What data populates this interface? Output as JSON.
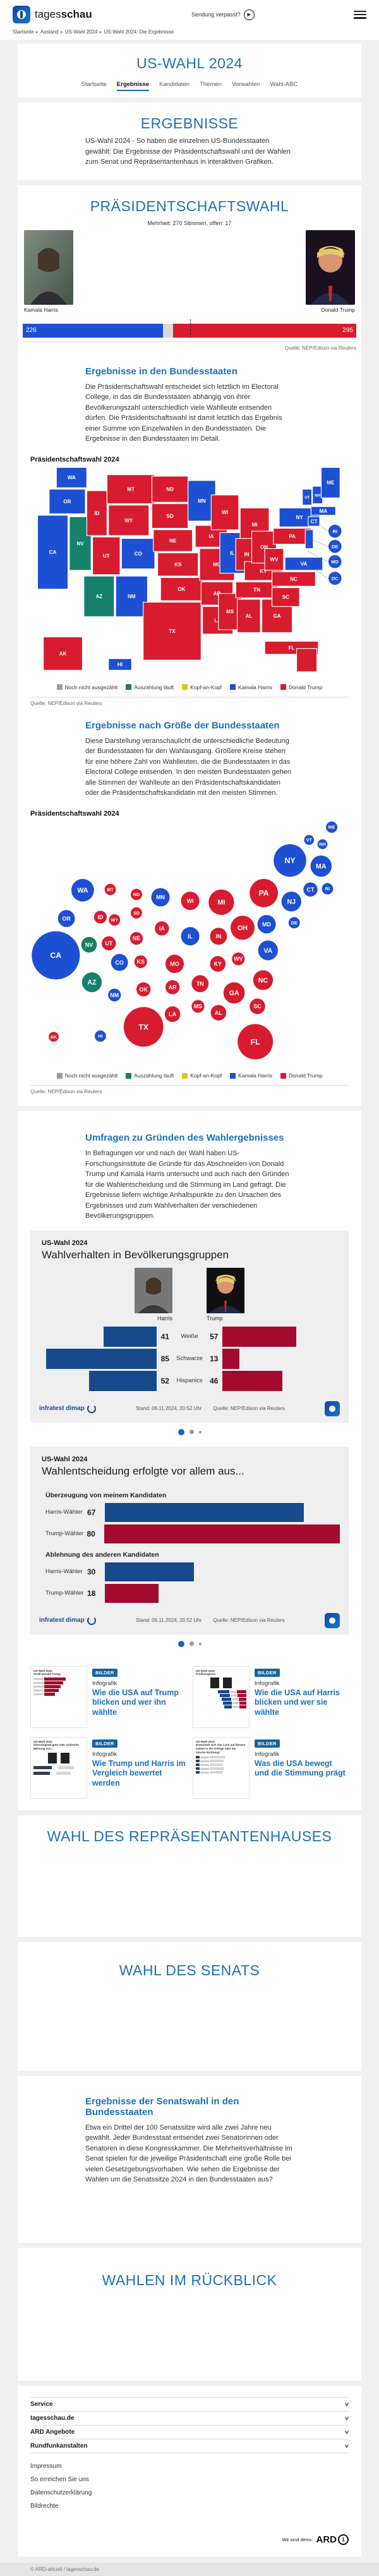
{
  "header": {
    "brand_regular": "tages",
    "brand_bold": "schau",
    "missed_show": "Sendung verpasst?"
  },
  "breadcrumb": [
    "Startseite",
    "Ausland",
    "US-Wahl 2024",
    "US-Wahl 2024: Die Ergebnisse"
  ],
  "page_title": "US-WAHL 2024",
  "tabs": [
    {
      "label": "Startseite",
      "active": false
    },
    {
      "label": "Ergebnisse",
      "active": true
    },
    {
      "label": "Kandidaten",
      "active": false
    },
    {
      "label": "Themen",
      "active": false
    },
    {
      "label": "Vorwahlen",
      "active": false
    },
    {
      "label": "Wahl-ABC",
      "active": false
    }
  ],
  "intro": {
    "title": "ERGEBNISSE",
    "text": "US-Wahl 2024 - So haben die einzelnen US-Bundesstaaten gewählt: Die Ergebnisse der Präsidentschaftswahl und der Wahlen zum Senat und Repräsentantenhaus in interaktiven Grafiken."
  },
  "president": {
    "title": "PRÄSIDENTSCHAFTSWAHL",
    "majority_note": "Mehrheit: 270 Stimmen, offen: 17",
    "harris_name": "Kamala Harris",
    "trump_name": "Donald Trump",
    "harris_votes": 226,
    "trump_votes": 295,
    "open_votes": 17,
    "total_votes": 538,
    "majority": 270,
    "source": "Quelle: NEP/Edison via Reuters",
    "states_heading": "Ergebnisse in den Bundesstaaten",
    "states_text": "Die Präsidentschaftswahl entscheidet sich letztlich im Electoral College, in das die Bundesstaaten abhängig von ihrer Bevölkerungszahl unterschiedlich viele Wahlleute entsenden dürfen. Die Präsidentschaftswahl ist damit letztlich das Ergebnis einer Summe von Einzelwahlen in den Bundesstaaten. Die Ergebnisse in den Bundesstaaten im Detail.",
    "map_label": "Präsidentschaftswahl 2024",
    "size_heading": "Ergebnisse nach Größe der Bundesstaaten",
    "size_text": "Diese Darstellung veranschaulicht die unterschiedliche Bedeutung der Bundesstaaten für den Wahlausgang. Größere Kreise stehen für eine höhere Zahl von Wahlleuten, die die Bundesstaaten in das Electoral College entsenden. In den meisten Bundesstaaten gehen alle Stimmen der Wahlleute an den Präsidentschaftskandidaten oder die Präsidentschaftskandidatin mit den meisten Stimmen."
  },
  "colors": {
    "harris": "#1e50d3",
    "trump": "#d81c2f",
    "counting": "#15806b",
    "none": "#9e9e9e",
    "tie": "#e8c412",
    "open_gray": "#d9d9d9",
    "ig_harris": "#174a8c",
    "ig_trump": "#a30b2e"
  },
  "legend": [
    {
      "label": "Noch nicht ausgezählt",
      "key": "none"
    },
    {
      "label": "Auszählung läuft",
      "key": "counting"
    },
    {
      "label": "Kopf-an-Kopf",
      "key": "tie"
    },
    {
      "label": "Kamala Harris",
      "key": "harris"
    },
    {
      "label": "Donald Trump",
      "key": "trump"
    }
  ],
  "chart_data": [
    {
      "type": "choropleth-map",
      "title": "Präsidentschaftswahl 2024",
      "results": {
        "harris": [
          "WA",
          "OR",
          "CA",
          "CO",
          "NM",
          "MN",
          "IL",
          "VA",
          "NY",
          "ME",
          "VT",
          "NH",
          "MA",
          "CT",
          "NJ",
          "RI",
          "DE",
          "MD",
          "DC",
          "HI"
        ],
        "counting": [
          "NV",
          "AZ"
        ],
        "trump": [
          "ID",
          "MT",
          "WY",
          "UT",
          "ND",
          "SD",
          "NE",
          "KS",
          "OK",
          "TX",
          "IA",
          "MO",
          "AR",
          "LA",
          "WI",
          "MI",
          "IN",
          "OH",
          "KY",
          "TN",
          "MS",
          "AL",
          "GA",
          "FL",
          "SC",
          "NC",
          "WV",
          "PA",
          "AK"
        ]
      },
      "tiles": [
        [
          "WA",
          36,
          2,
          42,
          28,
          "harris"
        ],
        [
          "OR",
          26,
          32,
          50,
          34,
          "harris"
        ],
        [
          "CA",
          10,
          68,
          42,
          102,
          "harris"
        ],
        [
          "NV",
          54,
          70,
          30,
          74,
          "counting"
        ],
        [
          "ID",
          78,
          34,
          28,
          62,
          "trump"
        ],
        [
          "MT",
          106,
          12,
          66,
          40,
          "trump"
        ],
        [
          "WY",
          108,
          54,
          56,
          42,
          "trump"
        ],
        [
          "UT",
          86,
          98,
          38,
          52,
          "trump"
        ],
        [
          "CO",
          126,
          100,
          46,
          42,
          "harris"
        ],
        [
          "AZ",
          74,
          152,
          42,
          56,
          "counting"
        ],
        [
          "NM",
          118,
          152,
          44,
          56,
          "harris"
        ],
        [
          "ND",
          168,
          14,
          50,
          36,
          "trump"
        ],
        [
          "SD",
          168,
          52,
          50,
          34,
          "trump"
        ],
        [
          "NE",
          170,
          88,
          54,
          30,
          "trump"
        ],
        [
          "KS",
          176,
          120,
          56,
          32,
          "trump"
        ],
        [
          "OK",
          180,
          154,
          58,
          32,
          "trump"
        ],
        [
          "TX",
          156,
          188,
          80,
          80,
          "trump"
        ],
        [
          "MN",
          218,
          20,
          38,
          56,
          "harris"
        ],
        [
          "IA",
          228,
          82,
          44,
          30,
          "trump"
        ],
        [
          "MO",
          234,
          114,
          48,
          44,
          "trump"
        ],
        [
          "AR",
          236,
          160,
          44,
          32,
          "trump"
        ],
        [
          "LA",
          238,
          194,
          42,
          38,
          "trump"
        ],
        [
          "WI",
          250,
          40,
          38,
          48,
          "trump"
        ],
        [
          "IL",
          262,
          92,
          34,
          56,
          "harris"
        ],
        [
          "MS",
          260,
          176,
          32,
          50,
          "trump"
        ],
        [
          "MI",
          290,
          58,
          40,
          46,
          "trump"
        ],
        [
          "IN",
          284,
          100,
          30,
          44,
          "trump"
        ],
        [
          "KY",
          296,
          132,
          52,
          26,
          "trump"
        ],
        [
          "TN",
          284,
          160,
          58,
          22,
          "trump"
        ],
        [
          "AL",
          286,
          184,
          32,
          46,
          "trump"
        ],
        [
          "OH",
          306,
          90,
          34,
          44,
          "trump"
        ],
        [
          "WV",
          324,
          114,
          26,
          30,
          "trump"
        ],
        [
          "GA",
          320,
          184,
          42,
          46,
          "trump"
        ],
        [
          "FL",
          324,
          242,
          74,
          18,
          "trump"
        ],
        [
          "FL2",
          368,
          252,
          28,
          32,
          "trump"
        ],
        [
          "SC",
          334,
          168,
          38,
          26,
          "trump"
        ],
        [
          "NC",
          334,
          146,
          60,
          20,
          "trump"
        ],
        [
          "VA",
          352,
          126,
          52,
          18,
          "harris"
        ],
        [
          "PA",
          336,
          86,
          52,
          22,
          "trump"
        ],
        [
          "NY",
          344,
          58,
          56,
          26,
          "harris"
        ],
        [
          "NJ",
          380,
          88,
          11,
          26,
          "harris"
        ],
        [
          "CT",
          384,
          70,
          16,
          13,
          "harris"
        ],
        [
          "MA",
          388,
          56,
          34,
          12,
          "harris"
        ],
        [
          "VT",
          376,
          32,
          13,
          22,
          "harris"
        ],
        [
          "NH",
          390,
          28,
          14,
          24,
          "harris"
        ],
        [
          "ME",
          402,
          2,
          26,
          42,
          "harris"
        ],
        [
          "AK",
          18,
          236,
          54,
          46,
          "trump"
        ],
        [
          "HI",
          108,
          266,
          32,
          16,
          "harris"
        ]
      ],
      "small_states": [
        [
          "RI",
          421,
          90,
          "harris"
        ],
        [
          "DE",
          421,
          111,
          "harris"
        ],
        [
          "MD",
          421,
          132,
          "harris"
        ],
        [
          "DC",
          421,
          155,
          "harris"
        ]
      ],
      "leaders": [
        [
          398,
          80,
          411,
          90
        ],
        [
          390,
          102,
          411,
          111
        ],
        [
          384,
          118,
          411,
          132
        ],
        [
          378,
          132,
          411,
          155
        ]
      ]
    },
    {
      "type": "bubble-cartogram",
      "title": "Präsidentschaftswahl 2024",
      "bubbles": [
        [
          "ME",
          426,
          10,
          8,
          "harris"
        ],
        [
          "VT",
          394,
          28,
          7,
          "harris"
        ],
        [
          "NH",
          413,
          34,
          7,
          "harris"
        ],
        [
          "NY",
          367,
          57,
          23,
          "harris"
        ],
        [
          "MA",
          411,
          65,
          15,
          "harris"
        ],
        [
          "WA",
          74,
          99,
          16,
          "harris"
        ],
        [
          "MT",
          113,
          98,
          8,
          "trump"
        ],
        [
          "ND",
          150,
          105,
          8,
          "trump"
        ],
        [
          "MN",
          184,
          109,
          13,
          "harris"
        ],
        [
          "WI",
          226,
          114,
          13,
          "trump"
        ],
        [
          "MI",
          270,
          116,
          18,
          "trump"
        ],
        [
          "PA",
          330,
          103,
          20,
          "trump"
        ],
        [
          "NJ",
          369,
          115,
          14,
          "harris"
        ],
        [
          "CT",
          396,
          98,
          10,
          "harris"
        ],
        [
          "RI",
          420,
          97,
          8,
          "harris"
        ],
        [
          "OR",
          51,
          139,
          12,
          "harris"
        ],
        [
          "ID",
          99,
          137,
          9,
          "trump"
        ],
        [
          "WY",
          119,
          141,
          8,
          "trump"
        ],
        [
          "SD",
          150,
          131,
          8,
          "trump"
        ],
        [
          "IA",
          186,
          153,
          10,
          "trump"
        ],
        [
          "OH",
          300,
          152,
          17,
          "trump"
        ],
        [
          "MD",
          334,
          147,
          13,
          "harris"
        ],
        [
          "DE",
          373,
          145,
          8,
          "harris"
        ],
        [
          "NV",
          83,
          176,
          11,
          "counting"
        ],
        [
          "UT",
          111,
          174,
          10,
          "trump"
        ],
        [
          "NE",
          150,
          167,
          9,
          "trump"
        ],
        [
          "IL",
          226,
          164,
          13,
          "harris"
        ],
        [
          "IN",
          266,
          164,
          12,
          "trump"
        ],
        [
          "CA",
          36,
          191,
          34,
          "harris"
        ],
        [
          "VA",
          336,
          184,
          14,
          "harris"
        ],
        [
          "CO",
          126,
          201,
          12,
          "harris"
        ],
        [
          "KS",
          156,
          200,
          9,
          "trump"
        ],
        [
          "MO",
          204,
          203,
          13,
          "trump"
        ],
        [
          "KY",
          265,
          203,
          11,
          "trump"
        ],
        [
          "WV",
          294,
          196,
          9,
          "trump"
        ],
        [
          "NC",
          329,
          226,
          14,
          "trump"
        ],
        [
          "AZ",
          87,
          229,
          14,
          "counting"
        ],
        [
          "TN",
          240,
          231,
          12,
          "trump"
        ],
        [
          "GA",
          288,
          244,
          15,
          "trump"
        ],
        [
          "NM",
          119,
          247,
          9,
          "harris"
        ],
        [
          "OK",
          160,
          239,
          10,
          "trump"
        ],
        [
          "AR",
          201,
          236,
          10,
          "trump"
        ],
        [
          "SC",
          321,
          263,
          11,
          "trump"
        ],
        [
          "MS",
          237,
          263,
          9,
          "trump"
        ],
        [
          "AL",
          266,
          272,
          11,
          "trump"
        ],
        [
          "LA",
          201,
          274,
          11,
          "trump"
        ],
        [
          "TX",
          160,
          292,
          28,
          "trump"
        ],
        [
          "FL",
          318,
          313,
          25,
          "trump"
        ],
        [
          "AK",
          33,
          306,
          7,
          "trump"
        ],
        [
          "HI",
          99,
          305,
          8,
          "harris"
        ]
      ]
    },
    {
      "type": "bar",
      "title": "Wahlverhalten in Bevölkerungsgruppen",
      "categories": [
        "Weiße",
        "Schwarze",
        "Hispanics"
      ],
      "series": [
        {
          "name": "Harris",
          "values": [
            41,
            85,
            52
          ]
        },
        {
          "name": "Trump",
          "values": [
            57,
            13,
            46
          ]
        }
      ]
    },
    {
      "type": "bar",
      "title": "Wahlentscheidung erfolgte vor allem aus...",
      "groups": [
        {
          "label": "Überzeugung von meinem Kandidaten",
          "rows": [
            {
              "label": "Harris-Wähler",
              "value": 67,
              "party": "ig_harris"
            },
            {
              "label": "Trump-Wähler",
              "value": 80,
              "party": "ig_trump"
            }
          ]
        },
        {
          "label": "Ablehnung des anderen Kandidaten",
          "rows": [
            {
              "label": "Harris-Wähler",
              "value": 30,
              "party": "ig_harris"
            },
            {
              "label": "Trump-Wähler",
              "value": 18,
              "party": "ig_trump"
            }
          ]
        }
      ]
    }
  ],
  "surveys": {
    "heading": "Umfragen zu Gründen des Wahlergebnisses",
    "text": "In Befragungen vor und nach der Wahl haben US-Forschungsinstitute die Gründe für das Abschneiden von Donald Trump und Kamala Harris untersucht und auch nach den Gründen für die Wahlentscheidung und die Stimmung im Land gefragt. Die Ergebnisse liefern wichtige Anhaltspunkte zu den Ursachen des Ergebnisses und zum Wahlverhalten der verschiedenen Bevölkerungsgruppen.",
    "card1": {
      "kicker": "US-Wahl 2024",
      "title": "Wahlverhalten in Bevölkerungsgruppen",
      "harris_label": "Harris",
      "trump_label": "Trump"
    },
    "card2": {
      "kicker": "US-Wahl 2024",
      "title": "Wahlentscheidung erfolgte vor allem aus..."
    },
    "brand": "infratest dimap",
    "stand": "Stand:  06.11.2024, 20:52 Uhr",
    "source": "Quelle: NEP/Edison via Reuters"
  },
  "teasers": [
    {
      "badge": "BILDER",
      "kicker": "Infografik",
      "title": "Wie die USA auf Trump blicken und wer ihn wählte",
      "thumb_kicker": "US-Wahl 2024",
      "thumb_title": "Profil Donald Trump",
      "mini": "red-bars"
    },
    {
      "badge": "BILDER",
      "kicker": "Infografik",
      "title": "Wie die USA auf Harris blicken und wer sie wählte",
      "thumb_kicker": "US-Wahl 2024",
      "thumb_title": "Profilvergleich",
      "mini": "compare"
    },
    {
      "badge": "BILDER",
      "kicker": "Infografik",
      "title": "Wie Trump und Harris im Vergleich bewertet werden",
      "thumb_kicker": "US-Wahl 2024",
      "thumb_title": "Überwiegend gute oder schlechte Meinung von...",
      "mini": "rating"
    },
    {
      "badge": "BILDER",
      "kicker": "Infografik",
      "title": "Was die USA bewegt und die Stimmung prägt",
      "thumb_kicker": "US-Wahl 2024",
      "thumb_title": "Entwickelt sich das Land auf diesem Gebiet in die richtige oder die falsche Richtung?",
      "mini": "mood"
    }
  ],
  "house": {
    "title": "WAHL DES REPRÄSENTANTENHAUSES"
  },
  "senate": {
    "title": "WAHL DES SENATS",
    "results_heading": "Ergebnisse der Senatswahl in den Bundesstaaten",
    "results_text": "Etwa ein Drittel der 100 Senatssitze wird alle zwei Jahre neu gewählt. Jeder Bundesstaat entsendet zwei Senatorinnen oder Senatoren in diese Kongresskammer. Die Mehrheitsverhältnisse im Senat spielen für die jeweilige Präsidentschaft eine große Rolle bei vielen Gesetzgebungsvorhaben. Wie sehen die Ergebnisse der Wahlen um die Senatssitze 2024 in den Bundesstaaten aus?"
  },
  "review": {
    "title": "WAHLEN IM RÜCKBLICK"
  },
  "footer": {
    "accordion": [
      "Service",
      "tagesschau.de",
      "ARD Angebote",
      "Rundfunkanstalten"
    ],
    "links": [
      "Impressum",
      "So erreichen Sie uns",
      "Datenschutzerklärung",
      "Bildrechte"
    ],
    "ard_claim": "Wir sind deins.",
    "ard_brand": "ARD",
    "copyright": "© ARD-aktuell / tagesschau.de"
  }
}
